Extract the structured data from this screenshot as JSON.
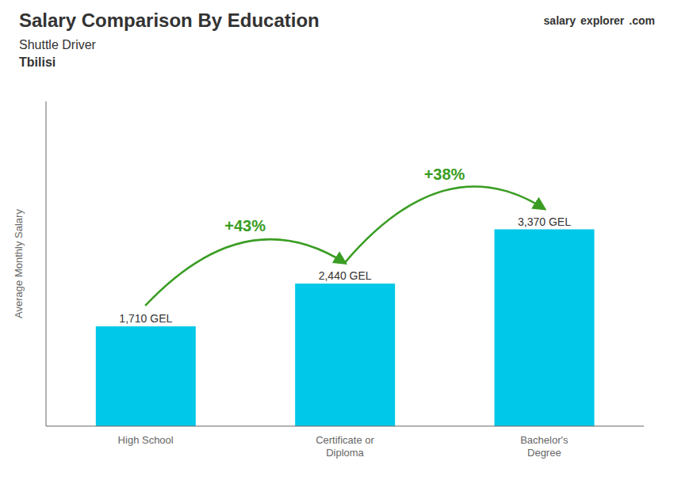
{
  "chart_data": {
    "type": "bar",
    "title": "Salary Comparison By Education",
    "subtitle": [
      "Shuttle Driver",
      "Tbilisi"
    ],
    "watermark": [
      "salary",
      "explorer",
      ".com"
    ],
    "categories": [
      "High School",
      "Certificate or\nDiploma",
      "Bachelor's\nDegree"
    ],
    "values": [
      1710,
      2440,
      3370
    ],
    "value_labels": [
      "1,710 GEL",
      "2,440 GEL",
      "3,370 GEL"
    ],
    "data_labels": true,
    "annotations": [
      "+43%",
      "+38%"
    ],
    "ylabel": "Average Monthly Salary",
    "color": "#00c8e8",
    "ylim": [
      0,
      5560.5
    ],
    "grid": false,
    "tick_labels": "x"
  }
}
